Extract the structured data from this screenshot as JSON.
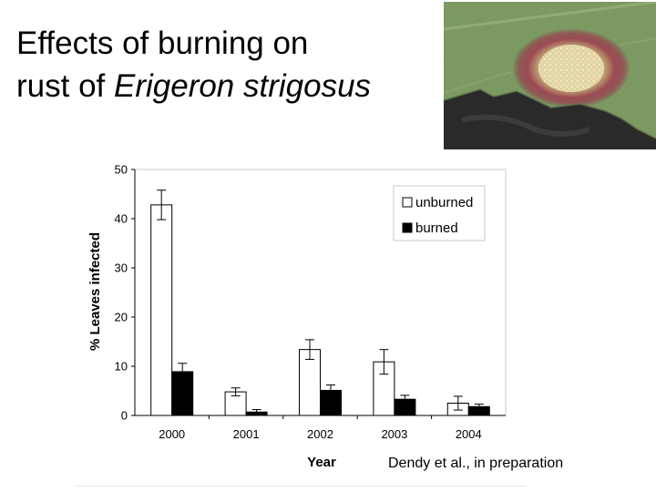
{
  "slide": {
    "title_line1": "Effects of burning on",
    "title_line2_prefix": "rust of ",
    "title_line2_italic": "Erigeron strigosus",
    "citation": "Dendy et al., in preparation",
    "photo_icon": "leaf-rust-lesion-photo"
  },
  "chart_data": {
    "type": "bar",
    "title": "",
    "xlabel": "Year",
    "ylabel": "% Leaves infected",
    "ylim": [
      0,
      50
    ],
    "yticks": [
      0,
      10,
      20,
      30,
      40,
      50
    ],
    "categories": [
      "2000",
      "2001",
      "2002",
      "2003",
      "2004"
    ],
    "series": [
      {
        "name": "unburned",
        "color": "#ffffff",
        "values": [
          42.8,
          4.8,
          13.4,
          10.9,
          2.5
        ],
        "error": [
          3.0,
          0.8,
          2.0,
          2.5,
          1.4
        ]
      },
      {
        "name": "burned",
        "color": "#000000",
        "values": [
          8.9,
          0.7,
          5.1,
          3.3,
          1.8
        ],
        "error": [
          1.7,
          0.5,
          1.1,
          0.8,
          0.5
        ]
      }
    ],
    "grid": false,
    "legend": "top-right"
  }
}
